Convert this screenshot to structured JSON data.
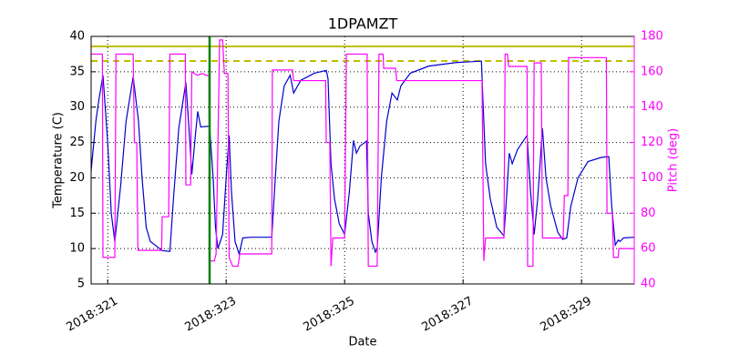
{
  "chart_data": {
    "type": "line",
    "title": "1DPAMZT",
    "x_label": "Date",
    "y_label": "Temperature (C)",
    "y2_label": "Pitch (deg)",
    "grid": true,
    "xlim": [
      320.72,
      329.89
    ],
    "xticks": [
      {
        "value": 321,
        "label": "2018:321"
      },
      {
        "value": 323,
        "label": "2018:323"
      },
      {
        "value": 325,
        "label": "2018:325"
      },
      {
        "value": 327,
        "label": "2018:327"
      },
      {
        "value": 329,
        "label": "2018:329"
      }
    ],
    "ylim": [
      5,
      40
    ],
    "yticks": [
      5,
      10,
      15,
      20,
      25,
      30,
      35,
      40
    ],
    "y2lim": [
      40,
      180
    ],
    "y2ticks": [
      40,
      60,
      80,
      100,
      120,
      140,
      160,
      180
    ],
    "y2_color": "#ff00ff",
    "hlines": [
      {
        "value": 38.58,
        "color": "#bfbf00",
        "style": "solid"
      },
      {
        "value": 36.53,
        "color": "#bfbf00",
        "style": "dashed"
      }
    ],
    "vlines": [
      {
        "value": 322.72,
        "color": "#008000",
        "style": "solid"
      }
    ],
    "series": [
      {
        "color": "#0000cc",
        "axis": "y",
        "x": [
          320.72,
          320.8,
          320.85,
          320.92,
          321.0,
          321.06,
          321.12,
          321.22,
          321.31,
          321.43,
          321.52,
          321.58,
          321.65,
          321.72,
          321.83,
          321.92,
          322.05,
          322.11,
          322.2,
          322.32,
          322.38,
          322.42,
          322.48,
          322.52,
          322.57,
          322.72,
          322.78,
          322.82,
          322.86,
          322.94,
          323.0,
          323.05,
          323.09,
          323.15,
          323.22,
          323.28,
          323.42,
          323.77,
          323.83,
          323.89,
          323.98,
          324.08,
          324.14,
          324.26,
          324.49,
          324.69,
          324.72,
          324.77,
          324.83,
          324.91,
          325.0,
          325.08,
          325.15,
          325.2,
          325.26,
          325.37,
          325.4,
          325.46,
          325.52,
          325.55,
          325.62,
          325.71,
          325.8,
          325.89,
          325.95,
          326.11,
          326.42,
          326.88,
          327.31,
          327.34,
          327.38,
          327.46,
          327.57,
          327.69,
          327.74,
          327.78,
          327.83,
          327.92,
          328.08,
          328.14,
          328.2,
          328.26,
          328.34,
          328.4,
          328.48,
          328.6,
          328.68,
          328.75,
          328.82,
          328.94,
          329.11,
          329.34,
          329.46,
          329.51,
          329.57,
          329.62,
          329.65,
          329.71,
          329.89
        ],
        "values": [
          21,
          28,
          31,
          34.5,
          25,
          15,
          11,
          19,
          28,
          34.3,
          28,
          20,
          13,
          11,
          10.3,
          9.7,
          9.6,
          17,
          27,
          33.5,
          26,
          20.5,
          26,
          29.4,
          27.2,
          27.3,
          20,
          13,
          10,
          12,
          20,
          26,
          18,
          11,
          9.2,
          11.5,
          11.6,
          11.6,
          20,
          28,
          33,
          34.5,
          32,
          33.8,
          34.8,
          35.2,
          34,
          22,
          17,
          13.5,
          12,
          18,
          25.3,
          23.5,
          24.5,
          25.2,
          15,
          11,
          9.5,
          10,
          20,
          28,
          32,
          31,
          33,
          34.8,
          35.8,
          36.3,
          36.5,
          30,
          22,
          17,
          13,
          11.8,
          18,
          23.5,
          22,
          24,
          26,
          18,
          12,
          17,
          27,
          20,
          16,
          12.3,
          11.3,
          11.5,
          16,
          20,
          22.3,
          22.9,
          23,
          16,
          10.5,
          11.2,
          11,
          11.5,
          11.6
        ]
      },
      {
        "color": "#ff00ff",
        "axis": "y2",
        "x": [
          320.72,
          320.91,
          320.92,
          321.12,
          321.14,
          321.43,
          321.45,
          321.49,
          321.51,
          321.91,
          321.92,
          322.03,
          322.05,
          322.31,
          322.32,
          322.4,
          322.42,
          322.51,
          322.6,
          322.66,
          322.71,
          322.72,
          322.8,
          322.83,
          322.89,
          322.94,
          322.97,
          323.03,
          323.05,
          323.11,
          323.2,
          323.23,
          323.77,
          323.78,
          324.12,
          324.14,
          324.68,
          324.69,
          324.75,
          324.77,
          324.8,
          325.0,
          325.03,
          325.38,
          325.4,
          325.55,
          325.58,
          325.65,
          325.66,
          325.86,
          325.88,
          327.32,
          327.35,
          327.38,
          327.69,
          327.71,
          327.75,
          327.77,
          328.08,
          328.09,
          328.18,
          328.2,
          328.32,
          328.34,
          328.69,
          328.71,
          328.77,
          328.78,
          329.42,
          329.43,
          329.52,
          329.54,
          329.62,
          329.63,
          329.89
        ],
        "values": [
          170,
          170,
          55,
          55,
          170,
          170,
          120,
          120,
          59,
          59,
          78,
          78,
          170,
          170,
          96,
          96,
          160,
          158,
          159,
          158,
          158,
          53,
          53,
          57,
          178,
          178,
          159,
          159,
          55,
          50,
          50,
          57,
          57,
          161,
          161,
          155,
          155,
          120,
          120,
          50,
          66,
          66,
          170,
          170,
          50,
          50,
          170,
          170,
          162,
          162,
          155,
          155,
          53,
          66,
          66,
          170,
          170,
          163,
          163,
          50,
          50,
          165,
          165,
          66,
          66,
          90,
          90,
          168,
          168,
          80,
          80,
          55,
          55,
          60,
          60
        ]
      }
    ]
  }
}
